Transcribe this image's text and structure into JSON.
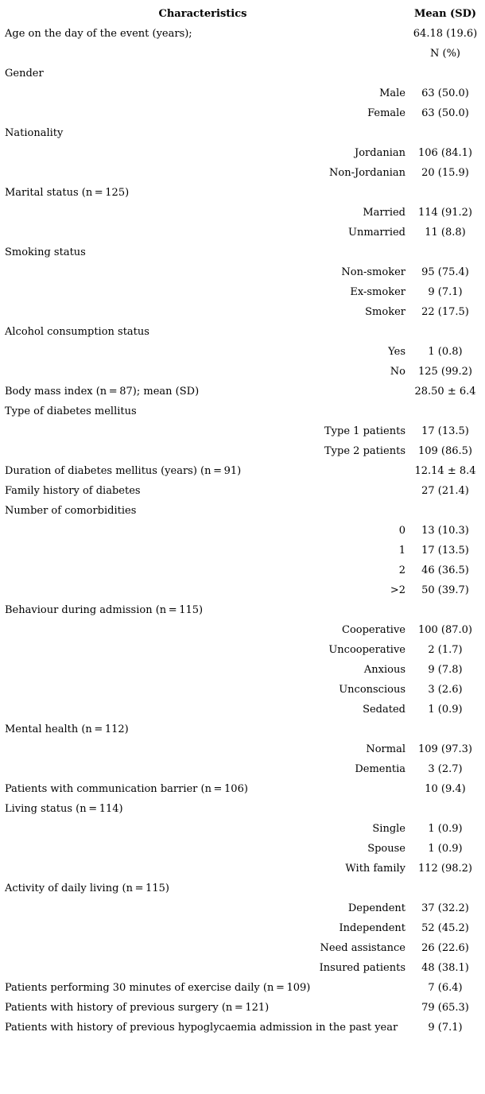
{
  "page": {
    "background_color": "#ffffff",
    "text_color": "#000000"
  },
  "table": {
    "header": {
      "characteristics": "Characteristics",
      "mean_sd": "Mean (SD)"
    },
    "rows": [
      {
        "type": "category-value",
        "label": "Age on the day of the event (years);",
        "value": "64.18 (19.6)"
      },
      {
        "type": "subheader",
        "label": "",
        "value": "N (%)"
      },
      {
        "type": "category",
        "label": "Gender",
        "value": ""
      },
      {
        "type": "item",
        "label": "Male",
        "value": "63 (50.0)"
      },
      {
        "type": "item",
        "label": "Female",
        "value": "63 (50.0)"
      },
      {
        "type": "category",
        "label": "Nationality",
        "value": ""
      },
      {
        "type": "item",
        "label": "Jordanian",
        "value": "106 (84.1)"
      },
      {
        "type": "item",
        "label": "Non-Jordanian",
        "value": "20 (15.9)"
      },
      {
        "type": "category",
        "label": "Marital status (n = 125)",
        "value": ""
      },
      {
        "type": "item",
        "label": "Married",
        "value": "114 (91.2)"
      },
      {
        "type": "item",
        "label": "Unmarried",
        "value": "11 (8.8)"
      },
      {
        "type": "category",
        "label": "Smoking status",
        "value": ""
      },
      {
        "type": "item",
        "label": "Non-smoker",
        "value": "95 (75.4)"
      },
      {
        "type": "item",
        "label": "Ex-smoker",
        "value": "9 (7.1)"
      },
      {
        "type": "item",
        "label": "Smoker",
        "value": "22 (17.5)"
      },
      {
        "type": "category",
        "label": "Alcohol consumption status",
        "value": ""
      },
      {
        "type": "item",
        "label": "Yes",
        "value": "1 (0.8)"
      },
      {
        "type": "item",
        "label": "No",
        "value": "125 (99.2)"
      },
      {
        "type": "category-value",
        "label": "Body mass index (n = 87); mean (SD)",
        "value": "28.50 ± 6.4"
      },
      {
        "type": "category",
        "label": "Type of diabetes mellitus",
        "value": ""
      },
      {
        "type": "item",
        "label": "Type 1 patients",
        "value": "17 (13.5)"
      },
      {
        "type": "item",
        "label": "Type 2 patients",
        "value": "109 (86.5)"
      },
      {
        "type": "category-value",
        "label": "Duration of diabetes mellitus (years) (n = 91)",
        "value": "12.14 ± 8.4"
      },
      {
        "type": "category-value",
        "label": "Family history of diabetes",
        "value": "27 (21.4)"
      },
      {
        "type": "category",
        "label": "Number of comorbidities",
        "value": ""
      },
      {
        "type": "item",
        "label": "0",
        "value": "13 (10.3)"
      },
      {
        "type": "item",
        "label": "1",
        "value": "17 (13.5)"
      },
      {
        "type": "item",
        "label": "2",
        "value": "46 (36.5)"
      },
      {
        "type": "item",
        "label": ">2",
        "value": "50 (39.7)"
      },
      {
        "type": "category",
        "label": "Behaviour during admission (n = 115)",
        "value": ""
      },
      {
        "type": "item",
        "label": "Cooperative",
        "value": "100 (87.0)"
      },
      {
        "type": "item",
        "label": "Uncooperative",
        "value": "2 (1.7)"
      },
      {
        "type": "item",
        "label": "Anxious",
        "value": "9 (7.8)"
      },
      {
        "type": "item",
        "label": "Unconscious",
        "value": "3 (2.6)"
      },
      {
        "type": "item",
        "label": "Sedated",
        "value": "1 (0.9)"
      },
      {
        "type": "category",
        "label": "Mental health (n = 112)",
        "value": ""
      },
      {
        "type": "item",
        "label": "Normal",
        "value": "109 (97.3)"
      },
      {
        "type": "item",
        "label": "Dementia",
        "value": "3 (2.7)"
      },
      {
        "type": "category-value",
        "label": "Patients with communication barrier (n = 106)",
        "value": "10 (9.4)"
      },
      {
        "type": "category",
        "label": "Living status (n = 114)",
        "value": ""
      },
      {
        "type": "item",
        "label": "Single",
        "value": "1 (0.9)"
      },
      {
        "type": "item",
        "label": "Spouse",
        "value": "1 (0.9)"
      },
      {
        "type": "item",
        "label": "With family",
        "value": "112 (98.2)"
      },
      {
        "type": "category",
        "label": "Activity of daily living (n = 115)",
        "value": ""
      },
      {
        "type": "item",
        "label": "Dependent",
        "value": "37 (32.2)"
      },
      {
        "type": "item",
        "label": "Independent",
        "value": "52 (45.2)"
      },
      {
        "type": "item",
        "label": "Need assistance",
        "value": "26 (22.6)"
      },
      {
        "type": "item",
        "label": "Insured patients",
        "value": "48 (38.1)"
      },
      {
        "type": "category-value",
        "label": "Patients performing 30 minutes of exercise daily (n = 109)",
        "value": "7 (6.4)"
      },
      {
        "type": "category-value",
        "label": "Patients with history of previous surgery (n = 121)",
        "value": "79 (65.3)"
      },
      {
        "type": "category-value",
        "label": "Patients with history of previous hypoglycaemia admission in the past year",
        "value": "9 (7.1)"
      }
    ]
  }
}
